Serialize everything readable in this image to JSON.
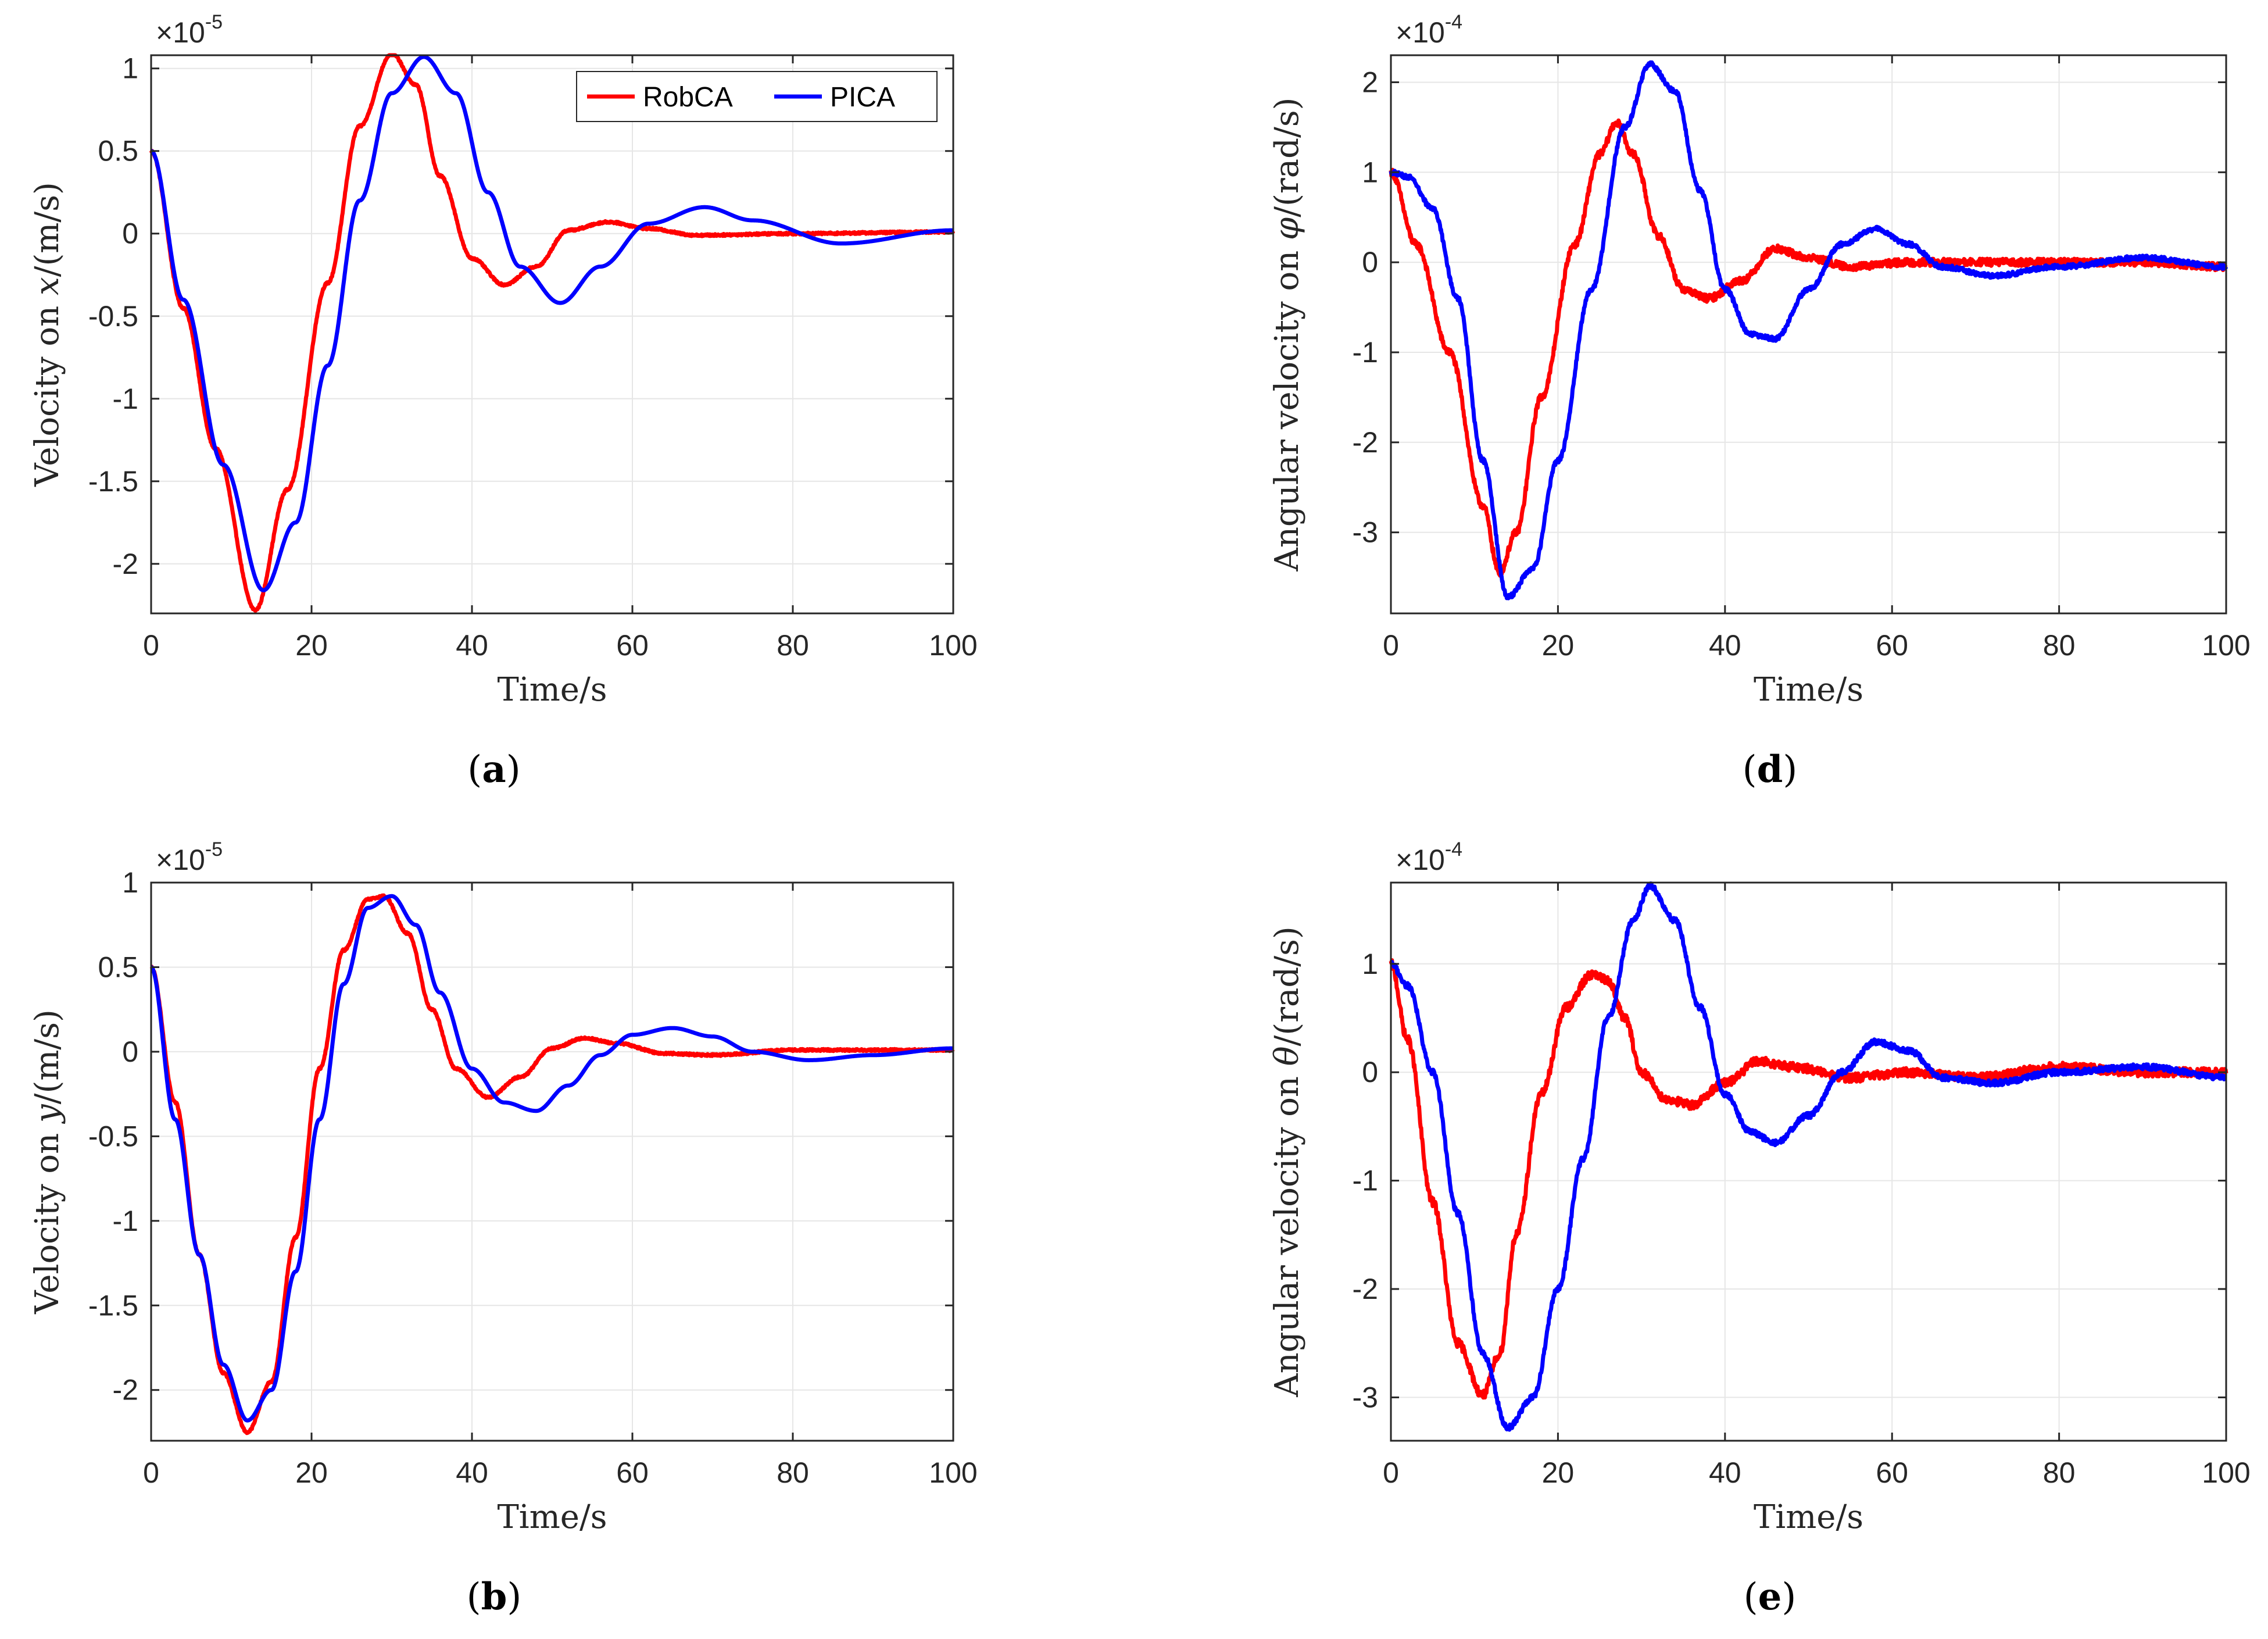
{
  "colors": {
    "robca": "#ff0000",
    "pica": "#0000ff",
    "grid": "#e6e6e6",
    "axis": "#262626"
  },
  "legend": {
    "entries": [
      "RobCA",
      "PICA"
    ],
    "placement": "top-right"
  },
  "chart_data": [
    {
      "id": "a",
      "caption_letter": "a",
      "type": "line",
      "xlabel": "Time/s",
      "ylabel_prefix": "Velocity on ",
      "ylabel_var": "x",
      "ylabel_suffix": "/(m/s)",
      "exponent_base": "×10",
      "exponent_power": "-5",
      "xlim": [
        0,
        100
      ],
      "ylim": [
        -2.3,
        1.08
      ],
      "xticks": [
        0,
        20,
        40,
        60,
        80,
        100
      ],
      "xtick_labels": [
        "0",
        "20",
        "40",
        "60",
        "80",
        "100"
      ],
      "yticks": [
        1,
        0.5,
        0,
        -0.5,
        -1,
        -1.5,
        -2
      ],
      "ytick_labels": [
        "1",
        "0.5",
        "0",
        "-0.5",
        "-1",
        "-1.5",
        "-2"
      ],
      "show_legend": true,
      "series": [
        {
          "name": "RobCA",
          "color": "#ff0000",
          "noise": 0.006,
          "x": [
            0,
            4,
            8,
            13,
            17,
            22,
            26,
            30,
            33,
            36,
            40,
            44,
            48,
            52,
            57,
            62,
            68,
            80,
            100
          ],
          "y": [
            0.5,
            -0.45,
            -1.3,
            -2.28,
            -1.55,
            -0.3,
            0.65,
            1.09,
            0.9,
            0.35,
            -0.15,
            -0.31,
            -0.2,
            0.02,
            0.07,
            0.03,
            -0.01,
            0.0,
            0.01
          ]
        },
        {
          "name": "PICA",
          "color": "#0000ff",
          "noise": 0,
          "x": [
            0,
            4,
            9,
            14,
            18,
            22,
            26,
            30,
            34,
            38,
            42,
            46,
            51,
            56,
            62,
            69,
            75,
            86,
            100
          ],
          "y": [
            0.5,
            -0.4,
            -1.4,
            -2.16,
            -1.75,
            -0.8,
            0.2,
            0.85,
            1.07,
            0.85,
            0.25,
            -0.2,
            -0.42,
            -0.2,
            0.06,
            0.16,
            0.08,
            -0.06,
            0.02
          ]
        }
      ]
    },
    {
      "id": "d",
      "caption_letter": "d",
      "type": "line",
      "xlabel": "Time/s",
      "ylabel_prefix": "Angular velocity on ",
      "ylabel_var": "φ",
      "ylabel_suffix": "/(rad/s)",
      "exponent_base": "×10",
      "exponent_power": "-4",
      "xlim": [
        0,
        100
      ],
      "ylim": [
        -3.9,
        2.3
      ],
      "xticks": [
        0,
        20,
        40,
        60,
        80,
        100
      ],
      "xtick_labels": [
        "0",
        "20",
        "40",
        "60",
        "80",
        "100"
      ],
      "yticks": [
        2,
        1,
        0,
        -1,
        -2,
        -3
      ],
      "ytick_labels": [
        "2",
        "1",
        "0",
        "-1",
        "-2",
        "-3"
      ],
      "show_legend": false,
      "series": [
        {
          "name": "RobCA",
          "color": "#ff0000",
          "noise": 0.04,
          "x": [
            0,
            3,
            7,
            11,
            13,
            15,
            18,
            22,
            25,
            27,
            29,
            32,
            35,
            38,
            42,
            46,
            50,
            55,
            62,
            75,
            90,
            100
          ],
          "y": [
            1.0,
            0.2,
            -1.0,
            -2.7,
            -3.45,
            -3.0,
            -1.5,
            0.2,
            1.2,
            1.55,
            1.2,
            0.3,
            -0.3,
            -0.4,
            -0.2,
            0.15,
            0.05,
            -0.05,
            0.0,
            0.0,
            0.0,
            -0.05
          ]
        },
        {
          "name": "PICA",
          "color": "#0000ff",
          "noise": 0.025,
          "x": [
            0,
            2,
            5,
            8,
            11,
            14,
            17,
            20,
            24,
            28,
            31,
            34,
            37,
            40,
            43,
            46,
            50,
            54,
            58,
            62,
            66,
            72,
            80,
            90,
            100
          ],
          "y": [
            1.0,
            0.95,
            0.6,
            -0.4,
            -2.2,
            -3.72,
            -3.4,
            -2.2,
            -0.3,
            1.5,
            2.2,
            1.9,
            0.8,
            -0.3,
            -0.8,
            -0.85,
            -0.3,
            0.2,
            0.37,
            0.2,
            -0.05,
            -0.15,
            -0.05,
            0.05,
            -0.05
          ]
        }
      ]
    },
    {
      "id": "b",
      "caption_letter": "b",
      "type": "line",
      "xlabel": "Time/s",
      "ylabel_prefix": "Velocity on ",
      "ylabel_var": "y",
      "ylabel_suffix": "/(m/s)",
      "exponent_base": "×10",
      "exponent_power": "-5",
      "xlim": [
        0,
        100
      ],
      "ylim": [
        -2.3,
        1.0
      ],
      "xticks": [
        0,
        20,
        40,
        60,
        80,
        100
      ],
      "xtick_labels": [
        "0",
        "20",
        "40",
        "60",
        "80",
        "100"
      ],
      "yticks": [
        1,
        0.5,
        0,
        -0.5,
        -1,
        -1.5,
        -2
      ],
      "ytick_labels": [
        "1",
        "0.5",
        "0",
        "-0.5",
        "-1",
        "-1.5",
        "-2"
      ],
      "show_legend": false,
      "series": [
        {
          "name": "RobCA",
          "color": "#ff0000",
          "noise": 0.006,
          "x": [
            0,
            3,
            6,
            9,
            12,
            15,
            18,
            21,
            24,
            27,
            29,
            32,
            35,
            38,
            42,
            46,
            50,
            54,
            58,
            64,
            70,
            80,
            100
          ],
          "y": [
            0.5,
            -0.3,
            -1.2,
            -1.9,
            -2.25,
            -1.95,
            -1.1,
            -0.1,
            0.6,
            0.9,
            0.92,
            0.7,
            0.25,
            -0.1,
            -0.27,
            -0.15,
            0.02,
            0.08,
            0.05,
            -0.01,
            -0.02,
            0.01,
            0.01
          ]
        },
        {
          "name": "PICA",
          "color": "#0000ff",
          "noise": 0,
          "x": [
            0,
            3,
            6,
            9,
            12,
            15,
            18,
            21,
            24,
            27,
            30,
            33,
            36,
            40,
            44,
            48,
            52,
            56,
            60,
            65,
            70,
            75,
            82,
            90,
            100
          ],
          "y": [
            0.5,
            -0.4,
            -1.2,
            -1.85,
            -2.18,
            -2.0,
            -1.3,
            -0.4,
            0.4,
            0.85,
            0.92,
            0.75,
            0.35,
            -0.1,
            -0.3,
            -0.35,
            -0.2,
            -0.02,
            0.1,
            0.14,
            0.09,
            0.0,
            -0.05,
            -0.02,
            0.02
          ]
        }
      ]
    },
    {
      "id": "e",
      "caption_letter": "e",
      "type": "line",
      "xlabel": "Time/s",
      "ylabel_prefix": "Angular velocity on ",
      "ylabel_var": "θ",
      "ylabel_suffix": "/(rad/s)",
      "exponent_base": "×10",
      "exponent_power": "-4",
      "xlim": [
        0,
        100
      ],
      "ylim": [
        -3.4,
        1.75
      ],
      "xticks": [
        0,
        20,
        40,
        60,
        80,
        100
      ],
      "xtick_labels": [
        "0",
        "20",
        "40",
        "60",
        "80",
        "100"
      ],
      "yticks": [
        1,
        0,
        -1,
        -2,
        -3
      ],
      "ytick_labels": [
        "1",
        "0",
        "-1",
        "-2",
        "-3"
      ],
      "show_legend": false,
      "series": [
        {
          "name": "RobCA",
          "color": "#ff0000",
          "noise": 0.04,
          "x": [
            0,
            2,
            5,
            8,
            11,
            13,
            15,
            18,
            21,
            24,
            26,
            28,
            30,
            33,
            36,
            40,
            44,
            48,
            55,
            62,
            70,
            80,
            90,
            100
          ],
          "y": [
            1.0,
            0.3,
            -1.2,
            -2.5,
            -2.98,
            -2.6,
            -1.5,
            -0.2,
            0.6,
            0.9,
            0.85,
            0.5,
            0.0,
            -0.25,
            -0.3,
            -0.1,
            0.1,
            0.05,
            -0.05,
            0.0,
            -0.05,
            0.05,
            0.0,
            0.0
          ]
        },
        {
          "name": "PICA",
          "color": "#0000ff",
          "noise": 0.025,
          "x": [
            0,
            2,
            5,
            8,
            11,
            14,
            17,
            20,
            23,
            26,
            29,
            31,
            34,
            37,
            40,
            43,
            46,
            50,
            54,
            58,
            62,
            66,
            72,
            80,
            90,
            100
          ],
          "y": [
            1.0,
            0.8,
            0.0,
            -1.3,
            -2.6,
            -3.28,
            -3.0,
            -2.0,
            -0.8,
            0.5,
            1.4,
            1.72,
            1.4,
            0.6,
            -0.2,
            -0.55,
            -0.65,
            -0.4,
            0.0,
            0.28,
            0.2,
            -0.05,
            -0.1,
            0.0,
            0.05,
            -0.05
          ]
        }
      ]
    }
  ]
}
